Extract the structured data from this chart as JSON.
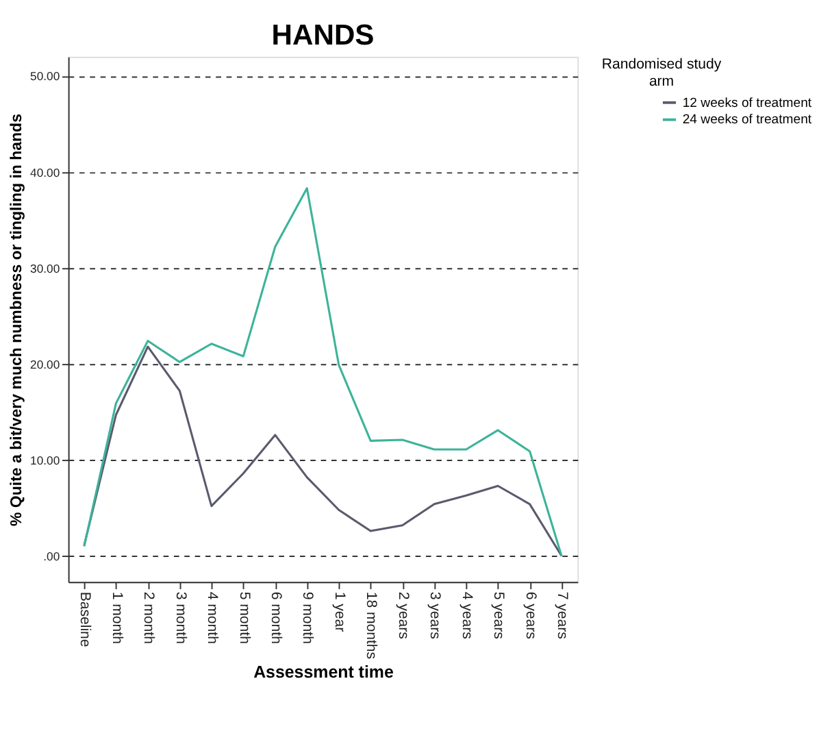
{
  "chart_data": {
    "type": "line",
    "title": "HANDS",
    "xlabel": "Assessment time",
    "ylabel": "% Quite a bit/very much numbness or tingling in hands",
    "legend_title": "Randomised study arm",
    "categories": [
      "Baseline",
      "1 month",
      "2 month",
      "3 month",
      "4 month",
      "5 month",
      "6 month",
      "9 month",
      "1 year",
      "18 months",
      "2 years",
      "3 years",
      "4 years",
      "5 years",
      "6 years",
      "7 years"
    ],
    "series": [
      {
        "name": "12 weeks of treatment",
        "color": "#5a5a6e",
        "values": [
          1.1,
          14.7,
          21.8,
          17.2,
          5.2,
          8.6,
          12.6,
          8.2,
          4.8,
          2.6,
          3.2,
          5.4,
          6.3,
          7.3,
          5.4,
          0
        ]
      },
      {
        "name": "24 weeks of treatment",
        "color": "#3cb39a",
        "values": [
          1.0,
          15.9,
          22.4,
          20.2,
          22.1,
          20.8,
          32.2,
          38.3,
          19.9,
          12.0,
          12.1,
          11.1,
          11.1,
          13.1,
          10.9,
          0
        ]
      }
    ],
    "ylim": [
      -2.7,
      52
    ],
    "yticks": [
      {
        "value": 0,
        "label": ".00"
      },
      {
        "value": 10,
        "label": "10.00"
      },
      {
        "value": 20,
        "label": "20.00"
      },
      {
        "value": 30,
        "label": "30.00"
      },
      {
        "value": 40,
        "label": "40.00"
      },
      {
        "value": 50,
        "label": "50.00"
      }
    ],
    "grid": "y",
    "legend": "right",
    "marker": "none",
    "line_style": "solid"
  }
}
